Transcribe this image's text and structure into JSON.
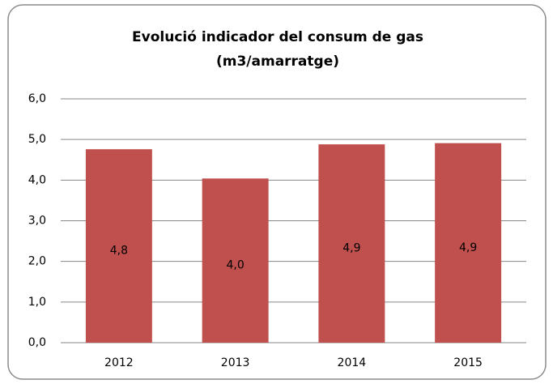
{
  "chart_data": {
    "type": "bar",
    "title": "Evolució indicador del consum de gas",
    "subtitle": "(m3/amarratge)",
    "categories": [
      "2012",
      "2013",
      "2014",
      "2015"
    ],
    "values": [
      4.76,
      4.04,
      4.88,
      4.91
    ],
    "value_labels": [
      "4,8",
      "4,0",
      "4,9",
      "4,9"
    ],
    "color": "#c0504d",
    "ylim": [
      0,
      6
    ],
    "yticks": [
      {
        "value": 0,
        "label": "0,0"
      },
      {
        "value": 1,
        "label": "1,0"
      },
      {
        "value": 2,
        "label": "2,0"
      },
      {
        "value": 3,
        "label": "3,0"
      },
      {
        "value": 4,
        "label": "4,0"
      },
      {
        "value": 5,
        "label": "5,0"
      },
      {
        "value": 6,
        "label": "6,0"
      }
    ],
    "grid": true
  }
}
